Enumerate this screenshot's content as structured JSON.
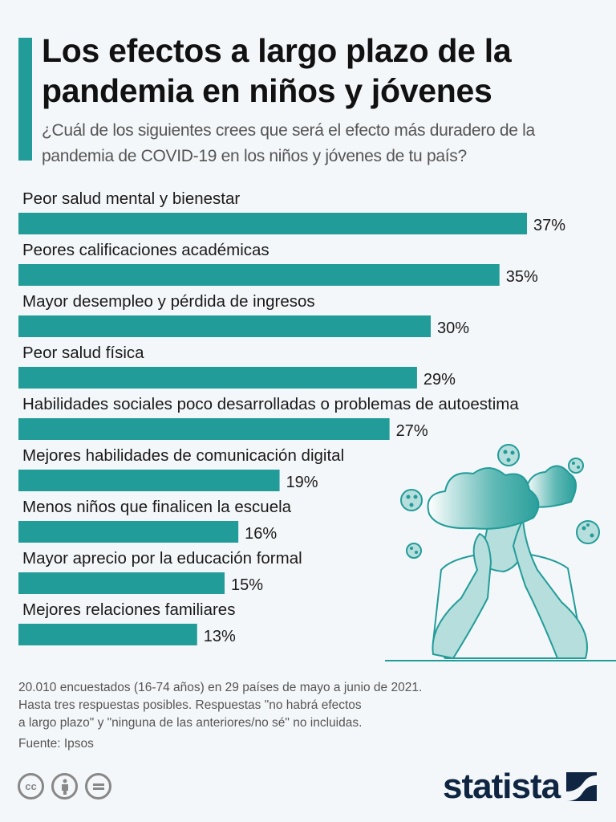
{
  "header": {
    "title": "Los efectos a largo plazo de la pandemia en niños y jóvenes",
    "subtitle": "¿Cuál de los siguientes crees que será el efecto más duradero de la pandemia de COVID-19 en los niños y jóvenes de tu país?"
  },
  "colors": {
    "accent": "#229c99",
    "background": "#f4f7fa",
    "brand": "#0f2541"
  },
  "chart_data": {
    "type": "bar",
    "orientation": "horizontal",
    "title": "Los efectos a largo plazo de la pandemia en niños y jóvenes",
    "unit": "%",
    "xlim": [
      0,
      37
    ],
    "categories": [
      "Peor salud mental y bienestar",
      "Peores calificaciones académicas",
      "Mayor desempleo y pérdida de ingresos",
      "Peor salud física",
      "Habilidades sociales poco desarrolladas o problemas de autoestima",
      "Mejores habilidades de comunicación digital",
      "Menos niños que finalicen la escuela",
      "Mayor aprecio por la educación formal",
      "Mejores relaciones familiares"
    ],
    "values": [
      37,
      35,
      30,
      29,
      27,
      19,
      16,
      15,
      13
    ],
    "value_labels": [
      "37%",
      "35%",
      "30%",
      "29%",
      "27%",
      "19%",
      "16%",
      "15%",
      "13%"
    ]
  },
  "footer": {
    "notes": [
      "20.010 encuestados (16-74 años) en 29 países de mayo a junio de 2021.",
      "Hasta tres respuestas posibles. Respuestas \"no habrá efectos",
      "a largo plazo\" y \"ninguna de las anteriores/no sé\" no incluidas."
    ],
    "source": "Fuente: Ipsos",
    "license_icons": [
      "cc-icon",
      "attribution-icon",
      "no-derivatives-icon"
    ],
    "cc_label": "cc",
    "brand": "statista"
  }
}
